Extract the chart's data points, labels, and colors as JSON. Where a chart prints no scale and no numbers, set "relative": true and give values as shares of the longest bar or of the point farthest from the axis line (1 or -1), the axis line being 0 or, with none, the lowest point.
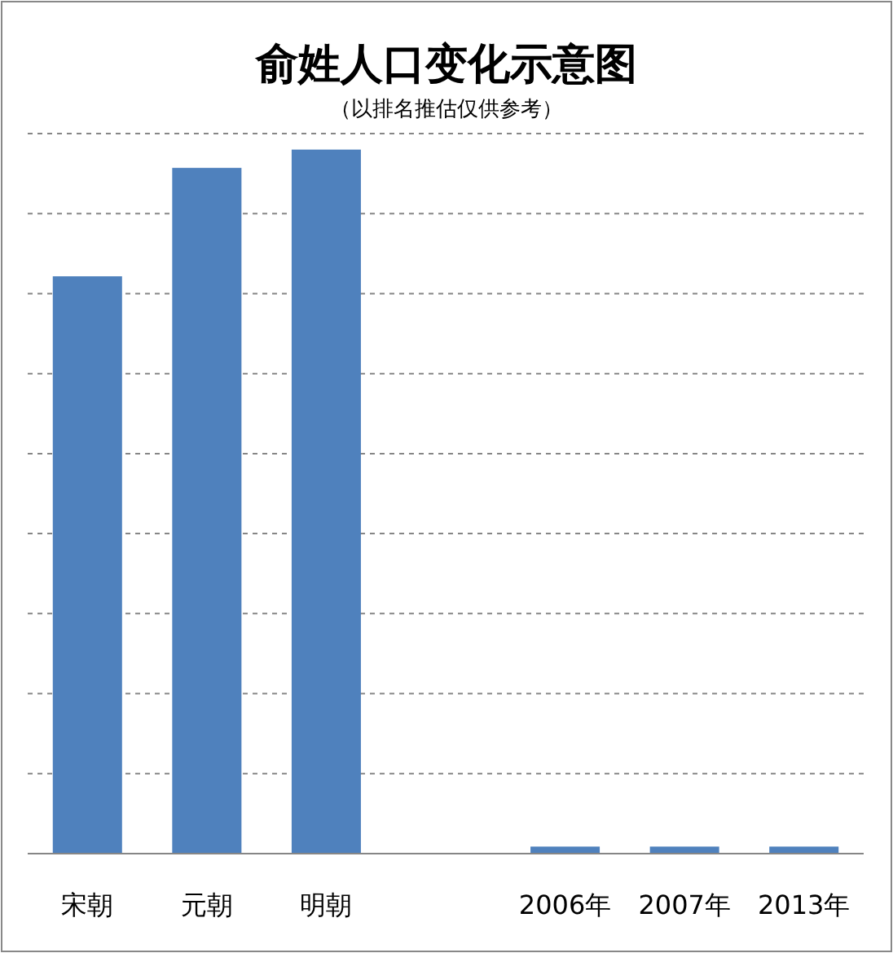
{
  "chart_data": {
    "type": "bar",
    "title": "俞姓人口变化示意图",
    "subtitle": "（以排名推估仅供参考）",
    "categories": [
      "宋朝",
      "元朝",
      "明朝",
      null,
      "2006年",
      "2007年",
      "2013年"
    ],
    "values": [
      0.82,
      0.974,
      1,
      null,
      0.01,
      0.01,
      0.01
    ],
    "color": "#4f81bd",
    "relative": true,
    "grid": "y"
  }
}
